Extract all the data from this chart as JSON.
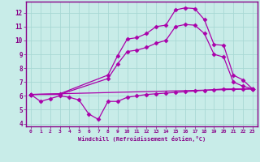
{
  "background_color": "#c8ece8",
  "line_color": "#aa00aa",
  "grid_color": "#a8d8d4",
  "spine_color": "#880088",
  "tick_color": "#880088",
  "xlabel": "Windchill (Refroidissement éolien,°C)",
  "xlim": [
    -0.5,
    23.5
  ],
  "ylim": [
    3.8,
    12.8
  ],
  "xticks": [
    0,
    1,
    2,
    3,
    4,
    5,
    6,
    7,
    8,
    9,
    10,
    11,
    12,
    13,
    14,
    15,
    16,
    17,
    18,
    19,
    20,
    21,
    22,
    23
  ],
  "yticks": [
    4,
    5,
    6,
    7,
    8,
    9,
    10,
    11,
    12
  ],
  "line1_x": [
    0,
    1,
    2,
    3,
    4,
    5,
    6,
    7,
    8,
    9,
    10,
    11,
    12,
    13,
    14,
    15,
    16,
    17,
    18,
    19,
    20,
    21,
    22,
    23
  ],
  "line1_y": [
    6.1,
    5.6,
    5.8,
    6.0,
    5.9,
    5.7,
    4.7,
    4.3,
    5.6,
    5.6,
    5.9,
    6.0,
    6.1,
    6.15,
    6.2,
    6.25,
    6.3,
    6.35,
    6.4,
    6.45,
    6.5,
    6.5,
    6.5,
    6.5
  ],
  "line2_x": [
    0,
    23
  ],
  "line2_y": [
    6.1,
    6.5
  ],
  "line3_x": [
    0,
    3,
    8,
    9,
    10,
    11,
    12,
    13,
    14,
    15,
    16,
    17,
    18,
    19,
    20,
    21,
    22,
    23
  ],
  "line3_y": [
    6.1,
    6.15,
    7.5,
    8.9,
    10.1,
    10.2,
    10.5,
    11.0,
    11.1,
    12.2,
    12.35,
    12.3,
    11.5,
    9.7,
    9.65,
    7.5,
    7.15,
    6.5
  ],
  "line4_x": [
    0,
    3,
    8,
    9,
    10,
    11,
    12,
    13,
    14,
    15,
    16,
    17,
    18,
    19,
    20,
    21,
    22,
    23
  ],
  "line4_y": [
    6.1,
    6.1,
    7.25,
    8.3,
    9.2,
    9.3,
    9.5,
    9.8,
    10.0,
    11.0,
    11.15,
    11.1,
    10.5,
    9.0,
    8.8,
    7.0,
    6.7,
    6.5
  ],
  "marker": "D",
  "markersize": 2.5,
  "linewidth": 0.9
}
